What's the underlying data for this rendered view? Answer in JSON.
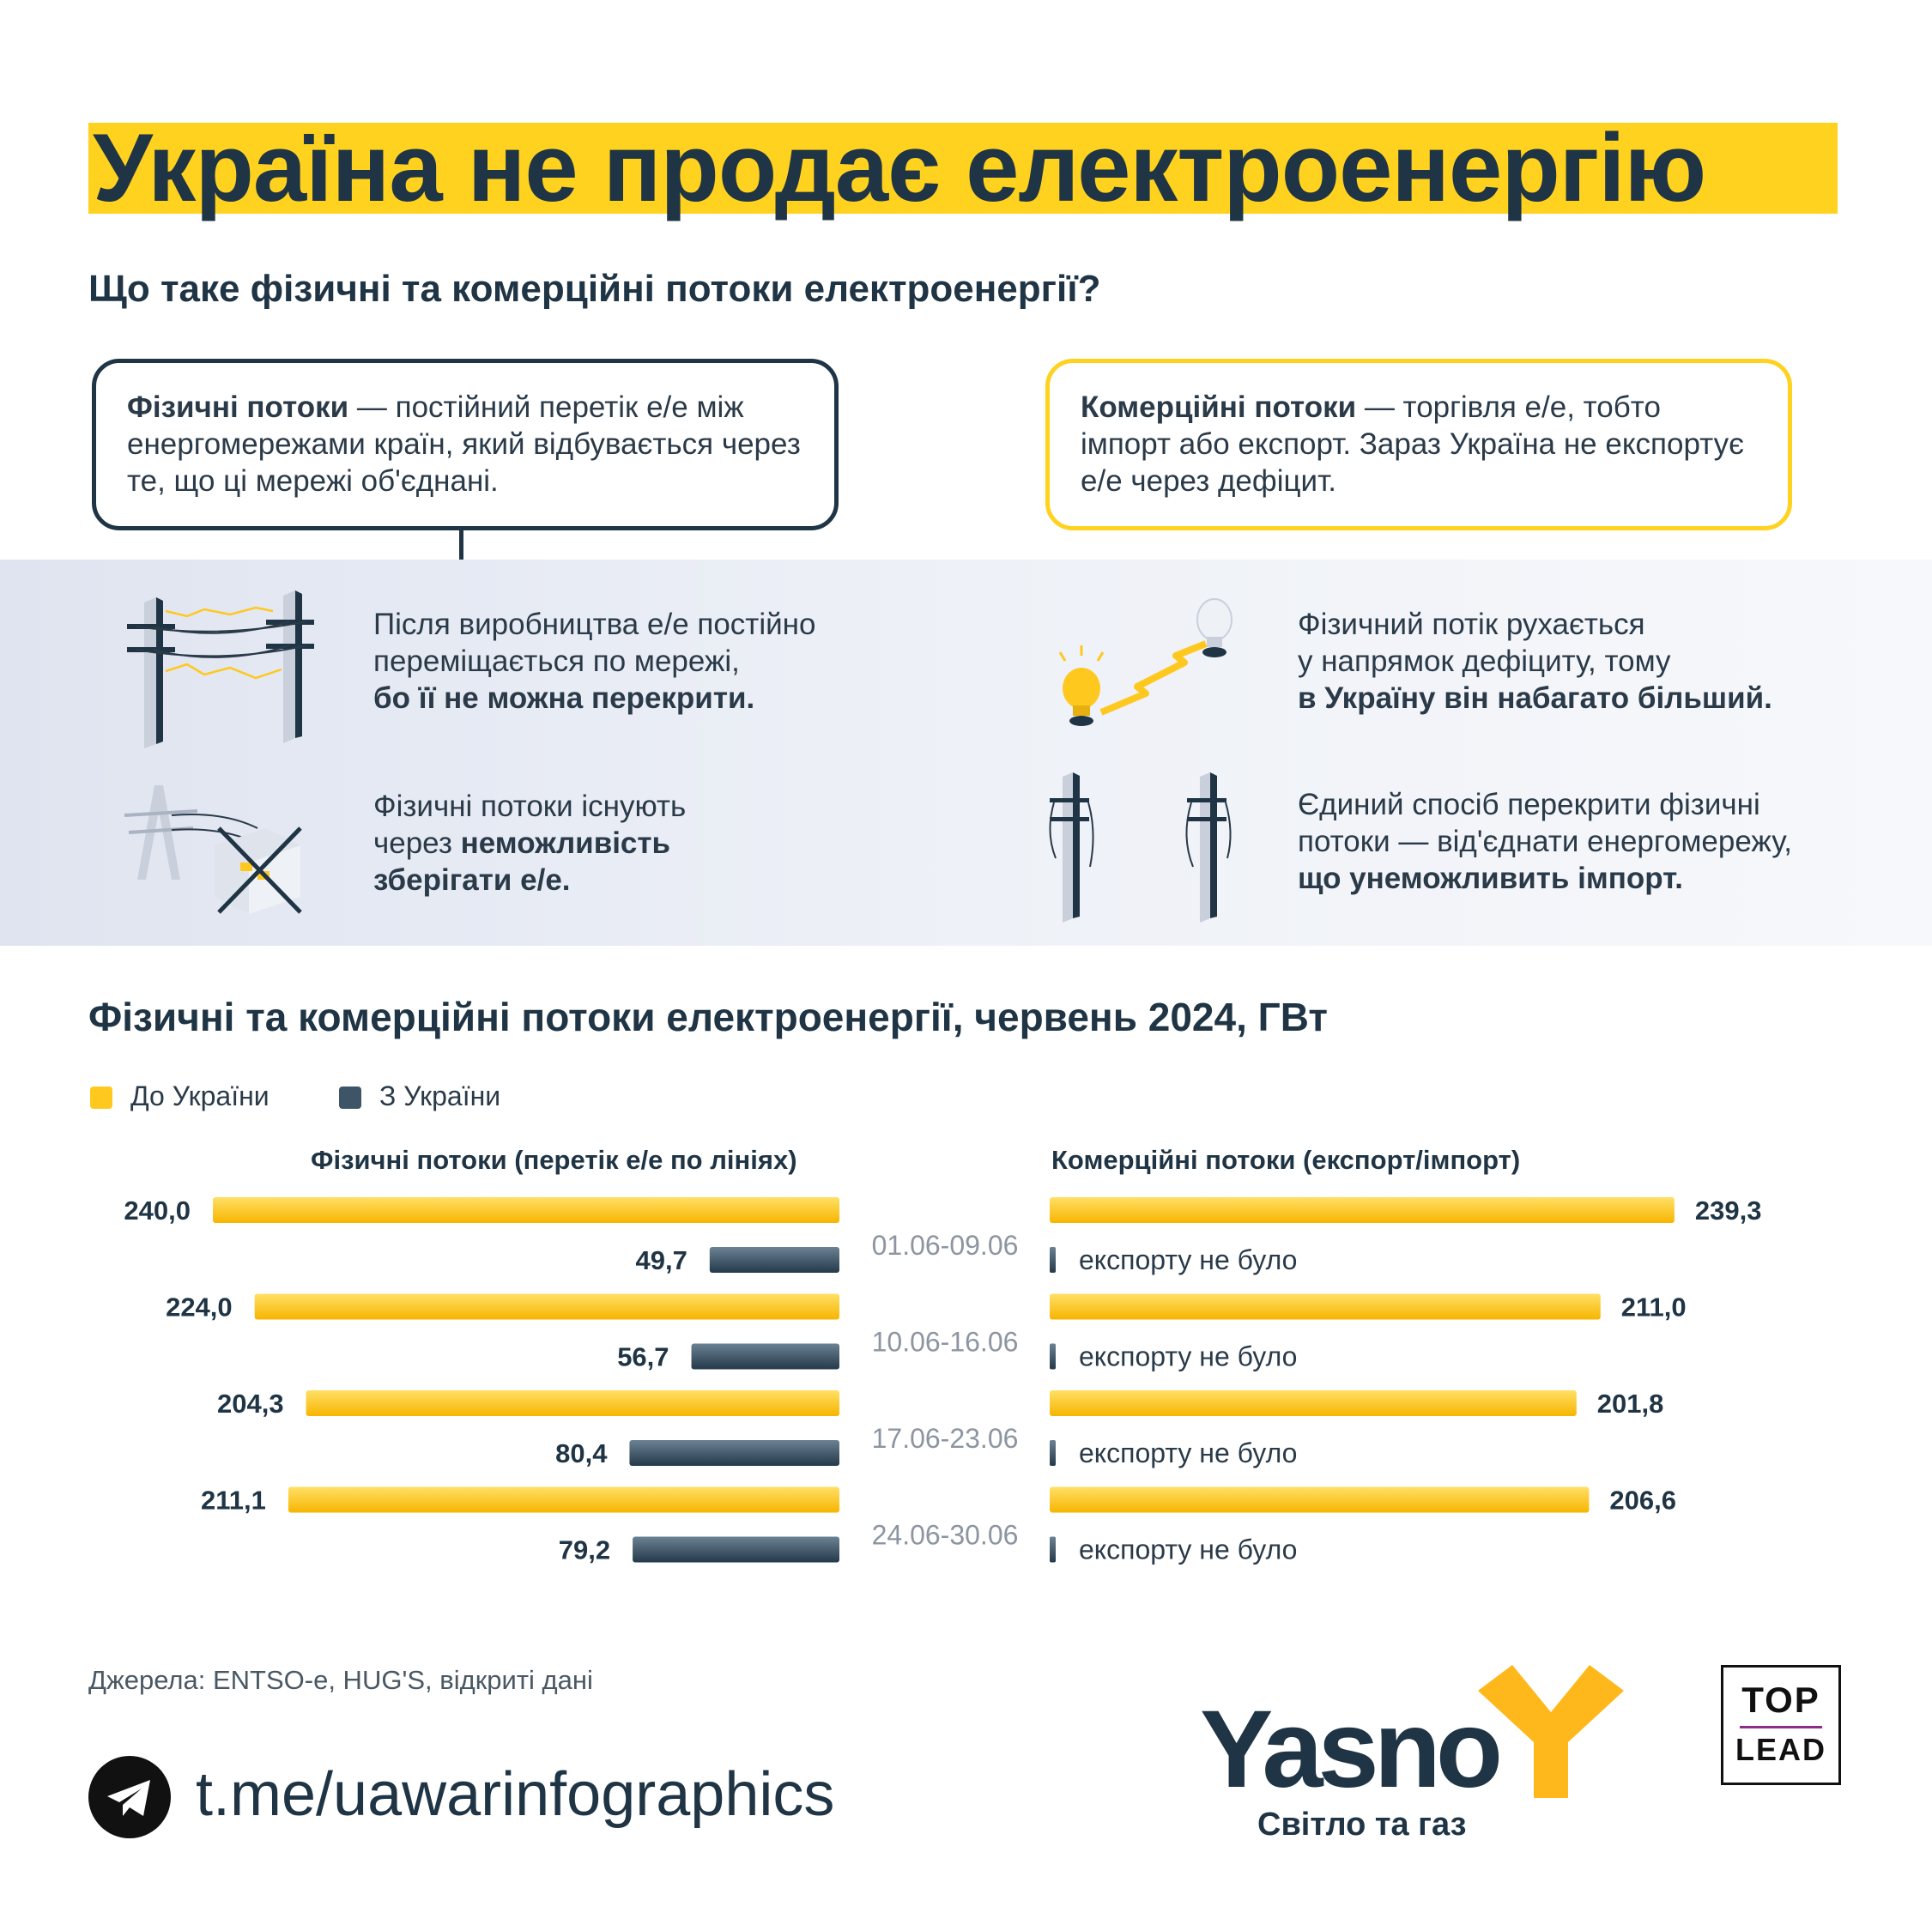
{
  "header": {
    "title": "Україна не продає електроенергію",
    "subtitle": "Що таке фізичні та комерційні потоки електроенергії?"
  },
  "definitions": {
    "physical": {
      "term": "Фізичні потоки",
      "text": " — постійний перетік е/е між енергомережами країн, який відбувається через те, що ці мережі об'єднані."
    },
    "commercial": {
      "term": "Комерційні потоки",
      "text": " — торгівля е/е, тобто імпорт або експорт. Зараз Україна не експортує е/е через дефіцит."
    }
  },
  "facts": [
    {
      "icon": "power-lines-icon",
      "lines": [
        {
          "text": "Після виробництва е/е постійно",
          "bold": false
        },
        {
          "text": "переміщається по мережі,",
          "bold": false
        },
        {
          "text": "бо її не можна перекрити.",
          "bold": true
        }
      ]
    },
    {
      "icon": "lightbulb-flow-icon",
      "lines": [
        {
          "text": "Фізичний потік рухається",
          "bold": false
        },
        {
          "text": "у напрямок дефіциту, тому",
          "bold": false
        },
        {
          "text": "в Україну він набагато більший.",
          "bold": true
        }
      ]
    },
    {
      "icon": "no-storage-icon",
      "lines": [
        {
          "text": "Фізичні потоки існують",
          "bold": false
        },
        {
          "pre": "через ",
          "text": "неможливість",
          "bold": true
        },
        {
          "text": "зберігати е/е.",
          "bold": true
        }
      ]
    },
    {
      "icon": "disconnected-poles-icon",
      "lines": [
        {
          "text": "Єдиний спосіб перекрити фізичні",
          "bold": false
        },
        {
          "text": "потоки — від'єднати енергомережу,",
          "bold": false
        },
        {
          "text": "що унеможливить імпорт.",
          "bold": true
        }
      ]
    }
  ],
  "chart_data": {
    "type": "bar",
    "title": "Фізичні та комерційні потоки електроенергії, червень 2024, ГВт",
    "legend": [
      {
        "name": "До України",
        "color": "#ffc81e"
      },
      {
        "name": "З України",
        "color": "#3d5566"
      }
    ],
    "categories": [
      "01.06-09.06",
      "10.06-16.06",
      "17.06-23.06",
      "24.06-30.06"
    ],
    "panels": [
      {
        "name": "Фізичні потоки (перетік е/е по лініях)",
        "series": [
          {
            "name": "До України",
            "values": [
              240.0,
              224.0,
              204.3,
              211.1
            ],
            "labels": [
              "240,0",
              "224,0",
              "204,3",
              "211,1"
            ]
          },
          {
            "name": "З України",
            "values": [
              49.7,
              56.7,
              80.4,
              79.2
            ],
            "labels": [
              "49,7",
              "56,7",
              "80,4",
              "79,2"
            ]
          }
        ]
      },
      {
        "name": "Комерційні потоки (експорт/імпорт)",
        "series": [
          {
            "name": "До України",
            "values": [
              239.3,
              211.0,
              201.8,
              206.6
            ],
            "labels": [
              "239,3",
              "211,0",
              "201,8",
              "206,6"
            ]
          },
          {
            "name": "З України",
            "values": [
              0,
              0,
              0,
              0
            ],
            "labels": [
              "експорту не було",
              "експорту не було",
              "експорту не було",
              "експорту не було"
            ]
          }
        ]
      }
    ]
  },
  "footer": {
    "source": "Джерела: ENTSO-e, HUG'S, відкриті дані",
    "telegram": "t.me/uawarinfographics",
    "brand": "Yasno",
    "brand_tagline": "Світло та газ",
    "partner_line1": "TOP",
    "partner_line2": "LEAD"
  }
}
